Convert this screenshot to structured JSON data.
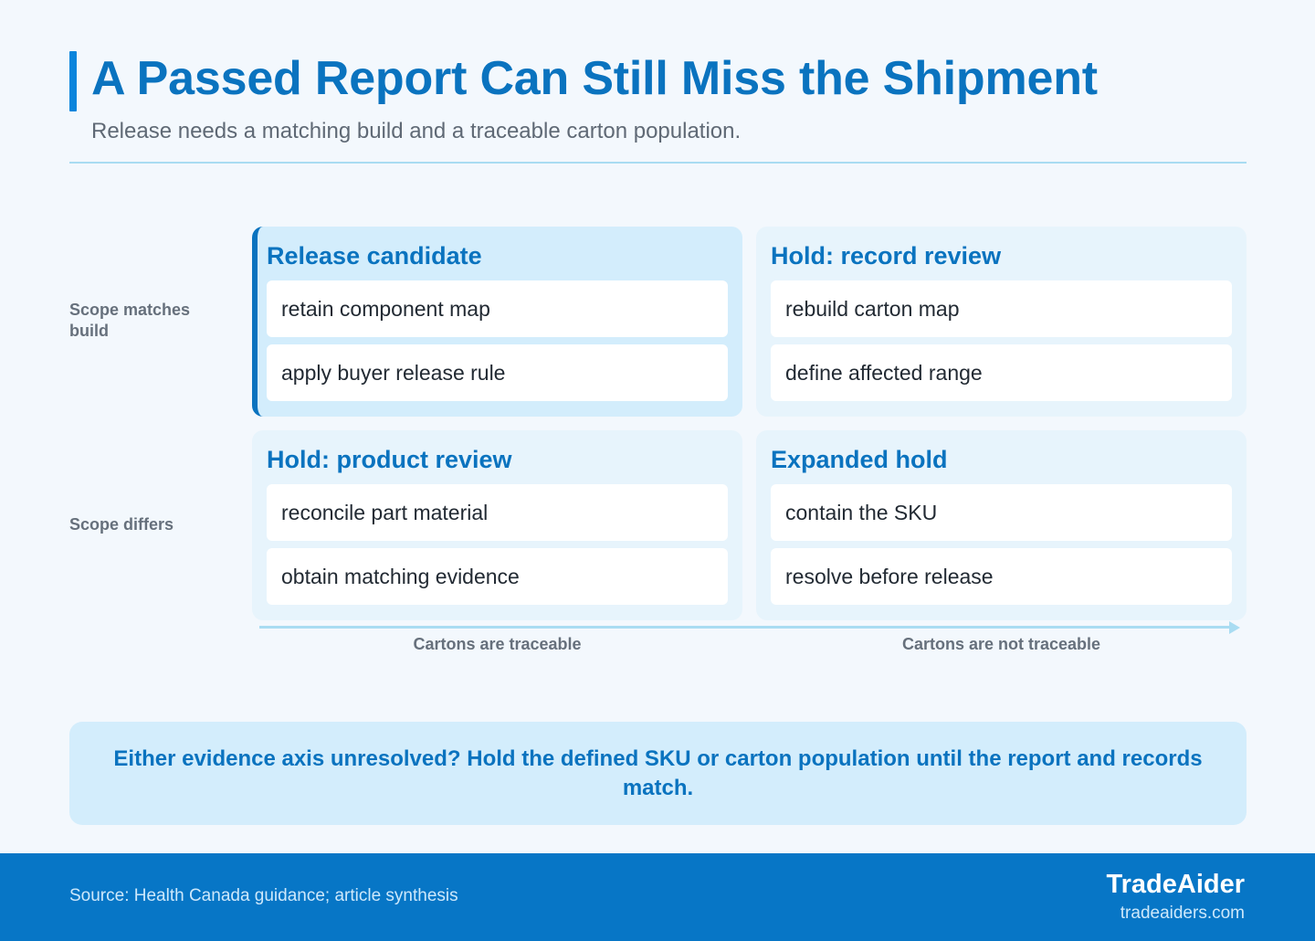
{
  "header": {
    "title": "A Passed Report Can Still Miss the Shipment",
    "subtitle": "Release needs a matching build and a traceable carton population."
  },
  "matrix": {
    "row_labels": [
      "Scope matches build",
      "Scope differs"
    ],
    "column_labels": [
      "Cartons are traceable",
      "Cartons are not traceable"
    ],
    "cells": [
      {
        "title": "Release candidate",
        "items": [
          "retain component map",
          "apply buyer release rule"
        ]
      },
      {
        "title": "Hold: record review",
        "items": [
          "rebuild carton map",
          "define affected range"
        ]
      },
      {
        "title": "Hold: product review",
        "items": [
          "reconcile part material",
          "obtain matching evidence"
        ]
      },
      {
        "title": "Expanded hold",
        "items": [
          "contain the SKU",
          "resolve before release"
        ]
      }
    ]
  },
  "callout": {
    "text": "Either evidence axis unresolved? Hold the defined SKU or carton population until the report and records match."
  },
  "footer": {
    "source": "Source: Health Canada guidance; article synthesis",
    "brand": "TradeAider",
    "url": "tradeaiders.com"
  },
  "colors": {
    "accent": "#0a73bf",
    "footer_bg": "#0776c6",
    "cell_bg": "#e7f4fc",
    "highlight_bg": "#d3edfc",
    "axis": "#a9dcf2"
  }
}
